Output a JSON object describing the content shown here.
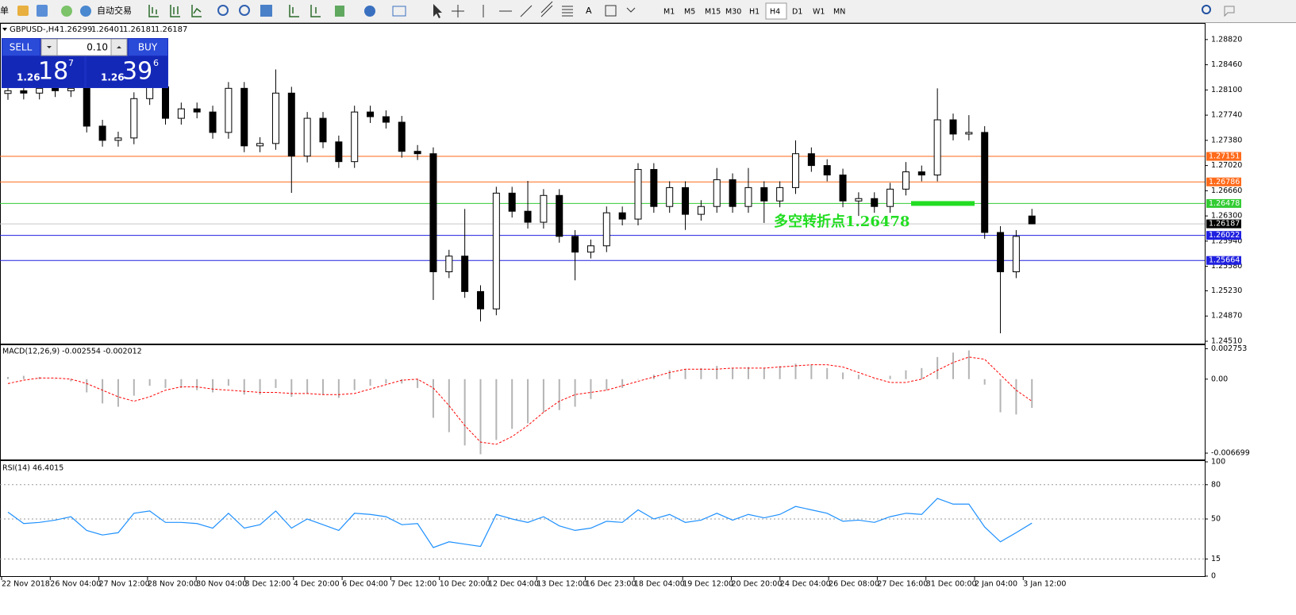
{
  "toolbar": {
    "menu_fragment": "单",
    "autotrade": "自动交易",
    "text_tool": "A",
    "timeframes": [
      "M1",
      "M5",
      "M15",
      "M30",
      "H1",
      "H4",
      "D1",
      "W1",
      "MN"
    ]
  },
  "header": {
    "symbol": "GBPUSD-,H4",
    "open": "1.26299",
    "high": "1.26401",
    "low": "1.26181",
    "close": "1.26187"
  },
  "trade_panel": {
    "sell": "SELL",
    "buy": "BUY",
    "lots": "0.10",
    "bid": {
      "big": "1.26",
      "pips": "18",
      "frac": "7"
    },
    "ask": {
      "big": "1.26",
      "pips": "39",
      "frac": "6"
    }
  },
  "chart_data": [
    {
      "type": "candlestick",
      "ylim": [
        1.24476,
        1.29045
      ],
      "yticks": [
        {
          "value": 1.2882,
          "label": "1.28820"
        },
        {
          "value": 1.2846,
          "label": "1.28460"
        },
        {
          "value": 1.281,
          "label": "1.28100"
        },
        {
          "value": 1.2774,
          "label": "1.27740"
        },
        {
          "value": 1.2738,
          "label": "1.27380"
        },
        {
          "value": 1.2702,
          "label": "1.27020"
        },
        {
          "value": 1.2666,
          "label": "1.26660"
        },
        {
          "value": 1.263,
          "label": "1.26300"
        },
        {
          "value": 1.2594,
          "label": "1.25940"
        },
        {
          "value": 1.2558,
          "label": "1.25580"
        },
        {
          "value": 1.2523,
          "label": "1.25230"
        },
        {
          "value": 1.2487,
          "label": "1.24870"
        },
        {
          "value": 1.2451,
          "label": "1.24510"
        }
      ],
      "open": [
        1.2805,
        1.28089,
        1.28055,
        1.28123,
        1.28089,
        1.28123,
        1.27583,
        1.2738,
        1.27414,
        1.27976,
        1.28145,
        1.27695,
        1.2783,
        1.27785,
        1.27493,
        1.28123,
        1.27301,
        1.27335,
        1.28055,
        1.27155,
        1.27695,
        1.27358,
        1.27076,
        1.27785,
        1.27718,
        1.27639,
        1.27223,
        1.27189,
        1.25502,
        1.25726,
        1.2522,
        1.24972,
        1.26626,
        1.26367,
        1.2621,
        1.26593,
        1.26008,
        1.25783,
        1.25873,
        1.26345,
        1.26255,
        1.26964,
        1.26435,
        1.26705,
        1.26323,
        1.26435,
        1.26818,
        1.26435,
        1.26705,
        1.26514,
        1.26705,
        1.27189,
        1.2702,
        1.26885,
        1.26514,
        1.26548,
        1.26435,
        1.26683,
        1.2693,
        1.26885,
        1.27673,
        1.2747,
        1.27493,
        1.26064,
        1.25502,
        1.26299
      ],
      "high": [
        1.28179,
        1.28179,
        1.28213,
        1.28213,
        1.28213,
        1.28213,
        1.27673,
        1.27504,
        1.28066,
        1.28235,
        1.28235,
        1.2792,
        1.2792,
        1.27875,
        1.28213,
        1.28213,
        1.27425,
        1.28393,
        1.28145,
        1.27785,
        1.27785,
        1.27448,
        1.27875,
        1.27875,
        1.27808,
        1.27729,
        1.27313,
        1.27279,
        1.25816,
        1.264,
        1.2531,
        1.26716,
        1.26716,
        1.268,
        1.26683,
        1.26683,
        1.26098,
        1.25963,
        1.26435,
        1.26435,
        1.27054,
        1.27054,
        1.26795,
        1.26795,
        1.26525,
        1.26985,
        1.26908,
        1.26985,
        1.26795,
        1.26795,
        1.2738,
        1.27279,
        1.2711,
        1.26975,
        1.26638,
        1.26638,
        1.26773,
        1.2707,
        1.2702,
        1.28123,
        1.27763,
        1.2774,
        1.27583,
        1.26154,
        1.26098,
        1.26401
      ],
      "low": [
        1.2796,
        1.27965,
        1.27965,
        1.27999,
        1.27999,
        1.27493,
        1.2729,
        1.2729,
        1.27324,
        1.27886,
        1.27605,
        1.27605,
        1.27695,
        1.27403,
        1.27403,
        1.27211,
        1.27211,
        1.27245,
        1.2663,
        1.27065,
        1.27268,
        1.26986,
        1.26986,
        1.27628,
        1.27549,
        1.27133,
        1.27099,
        1.251,
        1.25412,
        1.2513,
        1.24792,
        1.24882,
        1.26277,
        1.2612,
        1.2612,
        1.25918,
        1.2538,
        1.25693,
        1.25783,
        1.26165,
        1.26165,
        1.26345,
        1.26345,
        1.261,
        1.26233,
        1.26345,
        1.26345,
        1.26345,
        1.262,
        1.26424,
        1.26615,
        1.2693,
        1.26795,
        1.26424,
        1.263,
        1.26345,
        1.26345,
        1.26593,
        1.26795,
        1.26795,
        1.2738,
        1.2738,
        1.25974,
        1.24624,
        1.25412,
        1.26181
      ],
      "close": [
        1.28089,
        1.28055,
        1.28123,
        1.28089,
        1.28123,
        1.27583,
        1.2738,
        1.27414,
        1.27976,
        1.28145,
        1.27695,
        1.2783,
        1.27785,
        1.27493,
        1.28123,
        1.27301,
        1.27335,
        1.28055,
        1.27155,
        1.27695,
        1.27358,
        1.27076,
        1.27785,
        1.27718,
        1.27639,
        1.27223,
        1.27189,
        1.25502,
        1.25726,
        1.2522,
        1.24972,
        1.26626,
        1.26367,
        1.2621,
        1.26593,
        1.26008,
        1.25783,
        1.25873,
        1.26345,
        1.26255,
        1.26964,
        1.26435,
        1.26705,
        1.26323,
        1.26435,
        1.26818,
        1.26435,
        1.26705,
        1.26514,
        1.26705,
        1.27189,
        1.2702,
        1.26885,
        1.26514,
        1.26548,
        1.26435,
        1.26683,
        1.2693,
        1.26885,
        1.27673,
        1.2747,
        1.27493,
        1.26064,
        1.25502,
        1.26008,
        1.26187
      ],
      "levels": [
        {
          "value": 1.27151,
          "color": "#ff6a1a",
          "label_bg": "#ff6a1a"
        },
        {
          "value": 1.26786,
          "color": "#ff6a1a",
          "label_bg": "#ff6a1a"
        },
        {
          "value": 1.26478,
          "color": "#33cc33",
          "label_bg": "#33cc33"
        },
        {
          "value": 1.26187,
          "color": "#c8c8c8",
          "label_bg": "#000000"
        },
        {
          "value": 1.26022,
          "color": "#2020e0",
          "label_bg": "#2020e0"
        },
        {
          "value": 1.25664,
          "color": "#2020e0",
          "label_bg": "#2020e0"
        }
      ],
      "annotation": {
        "text": "多空转折点1.26478",
        "color": "#22dd22",
        "level": 2
      },
      "time_labels": [
        "22 Nov 2018",
        "26 Nov 04:00",
        "27 Nov 12:00",
        "28 Nov 20:00",
        "30 Nov 04:00",
        "3 Dec 12:00",
        "4 Dec 20:00",
        "6 Dec 04:00",
        "7 Dec 12:00",
        "10 Dec 20:00",
        "12 Dec 04:00",
        "13 Dec 12:00",
        "16 Dec 23:00",
        "18 Dec 04:00",
        "19 Dec 12:00",
        "20 Dec 20:00",
        "24 Dec 04:00",
        "26 Dec 08:00",
        "27 Dec 16:00",
        "31 Dec 00:00",
        "2 Jan 04:00",
        "3 Jan 12:00"
      ]
    },
    {
      "type": "macd",
      "title": "MACD(12,26,9) -0.002554 -0.002012",
      "ylim": [
        -0.0072,
        0.003
      ],
      "yticks": [
        0.002753,
        {
          "value": 0,
          "label": "0.00"
        },
        -0.006699
      ],
      "hist_color": "#b4b4b4",
      "signal_color": "#ff0000",
      "histogram": [
        0.0002,
        0.0003,
        0.0002,
        0,
        -0.0002,
        -0.0012,
        -0.0022,
        -0.0025,
        -0.0015,
        -0.0006,
        -0.0008,
        -0.0008,
        -0.001,
        -0.0012,
        -0.0006,
        -0.0014,
        -0.0014,
        -0.0008,
        -0.0016,
        -0.0013,
        -0.0014,
        -0.0017,
        -0.001,
        -0.0006,
        -0.0004,
        -0.0004,
        -0.0008,
        -0.0035,
        -0.0048,
        -0.006,
        -0.0068,
        -0.0055,
        -0.0045,
        -0.004,
        -0.003,
        -0.0028,
        -0.0025,
        -0.0018,
        -0.001,
        -0.0008,
        0,
        0.0004,
        0.0008,
        0.0009,
        0.001,
        0.0012,
        0.001,
        0.0011,
        0.001,
        0.0012,
        0.0014,
        0.0013,
        0.001,
        0.0006,
        0.0004,
        0,
        0.0003,
        0.0008,
        0.001,
        0.002,
        0.0024,
        0.0026,
        -0.0005,
        -0.003,
        -0.0032,
        -0.0026
      ],
      "signal": [
        -0.0004,
        -0.0001,
        0.0001,
        0.0001,
        0,
        -0.0004,
        -0.001,
        -0.0016,
        -0.002,
        -0.0016,
        -0.001,
        -0.0007,
        -0.0007,
        -0.0009,
        -0.001,
        -0.0011,
        -0.0012,
        -0.0012,
        -0.0013,
        -0.0013,
        -0.0014,
        -0.0014,
        -0.0013,
        -0.0009,
        -0.0005,
        -0.0001,
        0,
        -0.0008,
        -0.0024,
        -0.0042,
        -0.0057,
        -0.0059,
        -0.0052,
        -0.0042,
        -0.003,
        -0.002,
        -0.0014,
        -0.0012,
        -0.001,
        -0.0006,
        -0.0002,
        0.0002,
        0.0006,
        0.0009,
        0.0009,
        0.0009,
        0.001,
        0.001,
        0.001,
        0.0011,
        0.0012,
        0.0013,
        0.0013,
        0.0011,
        0.0006,
        0.0001,
        -0.0003,
        -0.0003,
        0,
        0.0008,
        0.0015,
        0.002,
        0.0018,
        0.0004,
        -0.001,
        -0.002
      ]
    },
    {
      "type": "line",
      "title": "RSI(14) 46.4015",
      "ylim": [
        0,
        100
      ],
      "yticks": [
        100,
        80,
        50,
        15,
        0
      ],
      "color": "#1e90ff",
      "values": [
        56,
        46,
        47,
        49,
        52,
        40,
        36,
        38,
        55,
        57,
        47,
        47,
        46,
        42,
        55,
        42,
        45,
        57,
        42,
        50,
        45,
        40,
        55,
        54,
        52,
        45,
        46,
        25,
        30,
        28,
        26,
        54,
        50,
        47,
        52,
        44,
        40,
        42,
        48,
        47,
        58,
        50,
        54,
        47,
        49,
        55,
        49,
        54,
        51,
        54,
        61,
        58,
        55,
        48,
        49,
        47,
        52,
        55,
        54,
        68,
        63,
        63,
        43,
        30,
        38,
        46.4
      ]
    }
  ]
}
